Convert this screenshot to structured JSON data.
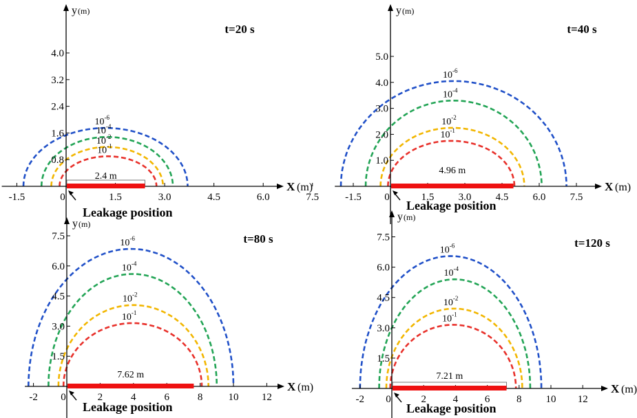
{
  "chart_data": [
    {
      "type": "line",
      "title": "t=20 s",
      "xlabel": "X",
      "xunit": "(m)",
      "ylabel": "y",
      "yunit": "(m)",
      "xticks": [
        "-1.5",
        "0",
        "1.5",
        "3.0",
        "4.5",
        "6.0",
        "7.5"
      ],
      "yticks": [
        "0.8",
        "1.6",
        "2.4",
        "3.2",
        "4.0"
      ],
      "xlim": [
        -2.0,
        8.0
      ],
      "ylim": [
        0,
        4.6
      ],
      "leak_label": "Leakage position",
      "leak_length": 2.4,
      "leak_length_label": "2.4 m",
      "grid": false,
      "series": [
        {
          "name": "10-6",
          "base": "10",
          "exp": "-6",
          "color": "#2050c8",
          "xmin": -1.3,
          "xmax": 3.7,
          "height": 1.75
        },
        {
          "name": "10-4",
          "base": "10",
          "exp": "-4",
          "color": "#22a455",
          "xmin": -0.75,
          "xmax": 3.25,
          "height": 1.48
        },
        {
          "name": "10-2",
          "base": "10",
          "exp": "-2",
          "color": "#f2b600",
          "xmin": -0.45,
          "xmax": 2.95,
          "height": 1.18
        },
        {
          "name": "10-1",
          "base": "10",
          "exp": "-1",
          "color": "#e8302a",
          "xmin": -0.2,
          "xmax": 2.75,
          "height": 0.9
        }
      ]
    },
    {
      "type": "line",
      "title": "t=40 s",
      "xlabel": "X",
      "xunit": "(m)",
      "ylabel": "y",
      "yunit": "(m)",
      "xticks": [
        "-1.5",
        "0",
        "1.5",
        "3.0",
        "4.5",
        "6.0",
        "7.5"
      ],
      "yticks": [
        "1.0",
        "2.0",
        "3.0",
        "4.0",
        "5.0"
      ],
      "xlim": [
        -2.3,
        8.8
      ],
      "ylim": [
        0,
        5.8
      ],
      "leak_label": "Leakage position",
      "leak_length": 4.96,
      "leak_length_label": "4.96 m",
      "grid": false,
      "series": [
        {
          "name": "10-6",
          "base": "10",
          "exp": "-6",
          "color": "#2050c8",
          "xmin": -2.0,
          "xmax": 7.1,
          "height": 4.05
        },
        {
          "name": "10-4",
          "base": "10",
          "exp": "-4",
          "color": "#22a455",
          "xmin": -1.0,
          "xmax": 6.1,
          "height": 3.3
        },
        {
          "name": "10-2",
          "base": "10",
          "exp": "-2",
          "color": "#f2b600",
          "xmin": -0.4,
          "xmax": 5.4,
          "height": 2.25
        },
        {
          "name": "10-1",
          "base": "10",
          "exp": "-1",
          "color": "#e8302a",
          "xmin": -0.1,
          "xmax": 5.0,
          "height": 1.75
        }
      ]
    },
    {
      "type": "line",
      "title": "t=80 s",
      "xlabel": "X",
      "xunit": "(m)",
      "ylabel": "y",
      "yunit": "(m)",
      "xticks": [
        "-2",
        "0",
        "2",
        "4",
        "6",
        "8",
        "10",
        "12"
      ],
      "yticks": [
        "1.5",
        "3.0",
        "4.5",
        "6.0",
        "7.5"
      ],
      "xlim": [
        -2.6,
        13.4
      ],
      "ylim": [
        0,
        8.4
      ],
      "leak_label": "Leakage position",
      "leak_length": 7.62,
      "leak_length_label": "7.62 m",
      "grid": false,
      "series": [
        {
          "name": "10-6",
          "base": "10",
          "exp": "-6",
          "color": "#2050c8",
          "xmin": -2.3,
          "xmax": 10.0,
          "height": 6.85
        },
        {
          "name": "10-4",
          "base": "10",
          "exp": "-4",
          "color": "#22a455",
          "xmin": -1.1,
          "xmax": 9.0,
          "height": 5.6
        },
        {
          "name": "10-2",
          "base": "10",
          "exp": "-2",
          "color": "#f2b600",
          "xmin": -0.5,
          "xmax": 8.5,
          "height": 4.05
        },
        {
          "name": "10-1",
          "base": "10",
          "exp": "-1",
          "color": "#e8302a",
          "xmin": -0.2,
          "xmax": 8.1,
          "height": 3.15
        }
      ]
    },
    {
      "type": "line",
      "title": "t=120 s",
      "xlabel": "X",
      "xunit": "(m)",
      "ylabel": "y",
      "yunit": "(m)",
      "xticks": [
        "-2",
        "0",
        "2",
        "4",
        "6",
        "8",
        "10",
        "12"
      ],
      "yticks": [
        "1.5",
        "3.0",
        "4.5",
        "6.0",
        "7.5"
      ],
      "xlim": [
        -2.6,
        13.4
      ],
      "ylim": [
        0,
        8.4
      ],
      "leak_label": "Leakage position",
      "leak_length": 7.21,
      "leak_length_label": "7.21 m",
      "grid": false,
      "series": [
        {
          "name": "10-6",
          "base": "10",
          "exp": "-6",
          "color": "#2050c8",
          "xmin": -2.0,
          "xmax": 9.4,
          "height": 6.55
        },
        {
          "name": "10-4",
          "base": "10",
          "exp": "-4",
          "color": "#22a455",
          "xmin": -0.8,
          "xmax": 8.7,
          "height": 5.4
        },
        {
          "name": "10-2",
          "base": "10",
          "exp": "-2",
          "color": "#f2b600",
          "xmin": -0.35,
          "xmax": 8.2,
          "height": 3.95
        },
        {
          "name": "10-1",
          "base": "10",
          "exp": "-1",
          "color": "#e8302a",
          "xmin": -0.1,
          "xmax": 7.8,
          "height": 3.15
        }
      ]
    }
  ]
}
